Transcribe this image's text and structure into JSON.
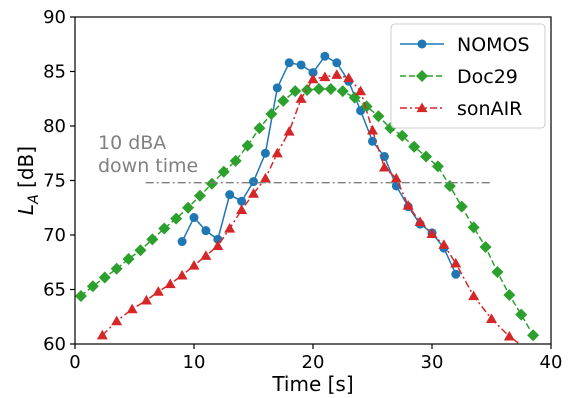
{
  "chart_data": {
    "type": "line",
    "xlabel": "Time [s]",
    "ylabel_main": "L",
    "ylabel_sub": "A",
    "ylabel_unit": " [dB]",
    "xlim": [
      0,
      40
    ],
    "ylim": [
      60,
      90
    ],
    "xticks": [
      0,
      10,
      20,
      30,
      40
    ],
    "yticks": [
      60,
      65,
      70,
      75,
      80,
      85,
      90
    ],
    "grid": false,
    "legend_position": "top-right",
    "series": [
      {
        "name": "NOMOS",
        "color": "#1f77b4",
        "marker": "circle",
        "linestyle": "solid",
        "x": [
          9,
          10,
          11,
          12,
          13,
          14,
          15,
          16,
          17,
          18,
          19,
          20,
          21,
          22,
          23,
          24,
          25,
          26,
          27,
          28,
          29,
          30,
          31,
          32
        ],
        "y": [
          69.4,
          71.6,
          70.4,
          69.6,
          73.7,
          73.1,
          74.9,
          77.5,
          83.5,
          85.8,
          85.6,
          84.9,
          86.4,
          85.8,
          84.1,
          81.4,
          78.6,
          77.2,
          74.5,
          72.6,
          71.0,
          70.2,
          68.8,
          66.4
        ]
      },
      {
        "name": "Doc29",
        "color": "#2ca02c",
        "marker": "diamond",
        "linestyle": "dashed",
        "x": [
          0.5,
          1.5,
          2.5,
          3.5,
          4.5,
          5.5,
          6.5,
          7.5,
          8.5,
          9.5,
          10.5,
          11.5,
          12.5,
          13.5,
          14.5,
          15.5,
          16.5,
          17.5,
          18.5,
          19.5,
          20.5,
          21.5,
          22.5,
          23.5,
          24.5,
          25.5,
          26.5,
          27.5,
          28.5,
          29.5,
          30.5,
          31.5,
          32.5,
          33.5,
          34.5,
          35.5,
          36.5,
          37.5,
          38.5
        ],
        "y": [
          64.4,
          65.3,
          66.1,
          66.9,
          67.8,
          68.6,
          69.6,
          70.6,
          71.5,
          72.5,
          73.6,
          74.7,
          75.8,
          76.8,
          78.2,
          79.8,
          81.1,
          82.3,
          83.2,
          83.3,
          83.4,
          83.4,
          83.2,
          82.6,
          81.8,
          80.9,
          79.8,
          79.1,
          78.1,
          77.2,
          76.3,
          74.5,
          72.6,
          70.7,
          68.9,
          66.6,
          64.5,
          62.7,
          60.8
        ]
      },
      {
        "name": "sonAIR",
        "color": "#d62728",
        "marker": "triangle",
        "linestyle": "dashdot",
        "x": [
          2.3,
          3.5,
          4.8,
          6.0,
          7.0,
          8.0,
          9.0,
          10.0,
          11.0,
          12.0,
          13.0,
          14.0,
          15.0,
          16.0,
          17.0,
          18.0,
          19.0,
          20.0,
          21.0,
          22.0,
          23.0,
          24.0,
          25.0,
          26.0,
          27.0,
          28.0,
          29.0,
          30.0,
          31.0,
          32.0,
          33.5,
          35.0,
          36.5,
          38.0
        ],
        "y": [
          60.8,
          62.1,
          63.2,
          64.0,
          64.8,
          65.5,
          66.3,
          67.2,
          68.1,
          69.0,
          70.6,
          72.3,
          73.8,
          75.2,
          77.5,
          79.5,
          82.5,
          84.3,
          84.5,
          84.7,
          84.4,
          83.2,
          79.6,
          76.2,
          75.2,
          72.7,
          71.2,
          70.1,
          69.1,
          67.4,
          64.4,
          62.3,
          60.7,
          59.5
        ]
      }
    ],
    "annotation": {
      "line1": "10 dBA",
      "line2": "down time",
      "line_y": 74.8,
      "line_x": [
        3,
        35
      ],
      "color": "#808080"
    }
  }
}
